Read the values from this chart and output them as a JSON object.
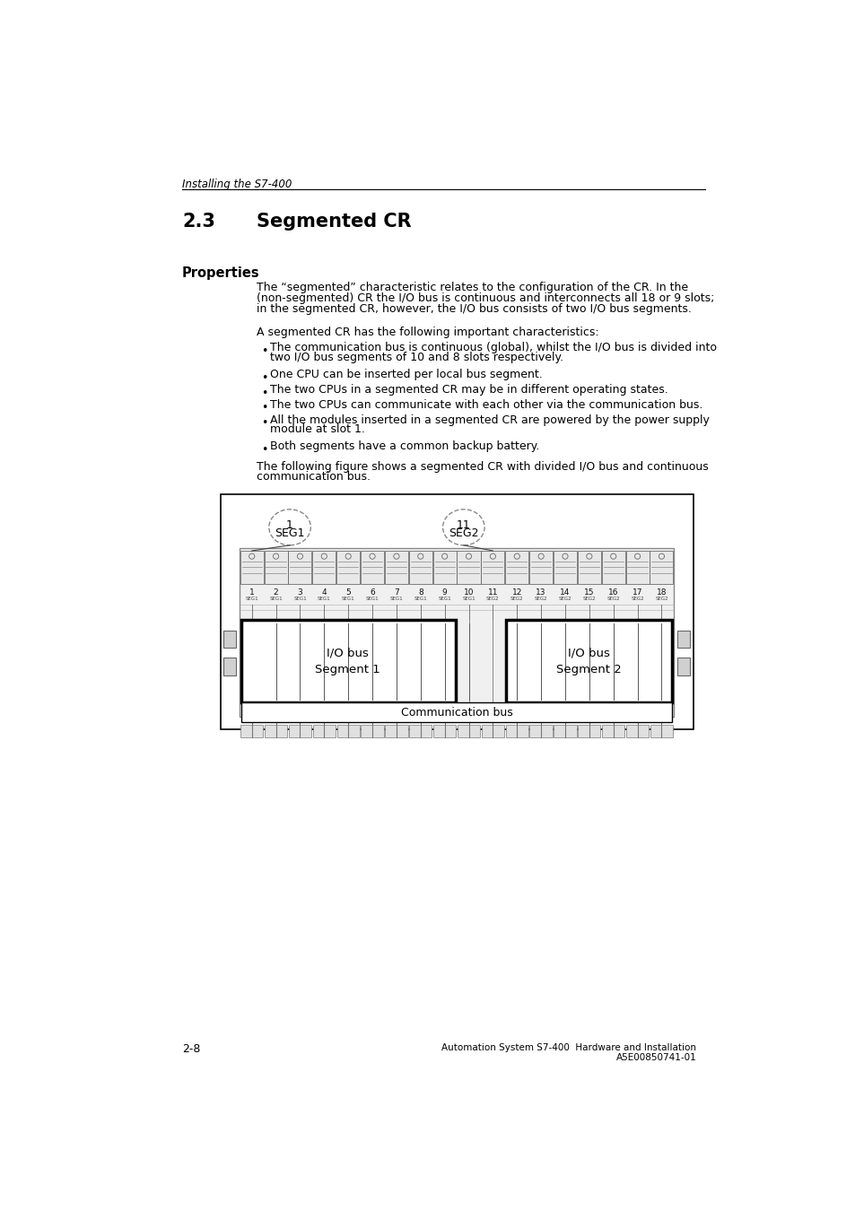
{
  "page_header": "Installing the S7-400",
  "section_number": "2.3",
  "section_title": "Segmented CR",
  "properties_heading": "Properties",
  "para1": "The “segmented” characteristic relates to the configuration of the CR. In the\n(non-segmented) CR the I/O bus is continuous and interconnects all 18 or 9 slots;\nin the segmented CR, however, the I/O bus consists of two I/O bus segments.",
  "para2": "A segmented CR has the following important characteristics:",
  "bullets": [
    "The communication bus is continuous (global), whilst the I/O bus is divided into\ntwo I/O bus segments of 10 and 8 slots respectively.",
    "One CPU can be inserted per local bus segment.",
    "The two CPUs in a segmented CR may be in different operating states.",
    "The two CPUs can communicate with each other via the communication bus.",
    "All the modules inserted in a segmented CR are powered by the power supply\nmodule at slot 1.",
    "Both segments have a common backup battery."
  ],
  "para3": "The following figure shows a segmented CR with divided I/O bus and continuous\ncommunication bus.",
  "footer_left": "2-8",
  "footer_right1": "Automation System S7-400  Hardware and Installation",
  "footer_right2": "A5E00850741-01",
  "fig_seg1_num": "1",
  "fig_seg1_label": "SEG1",
  "fig_seg2_num": "11",
  "fig_seg2_label": "SEG2",
  "fig_io_bus_seg1": "I/O bus\nSegment 1",
  "fig_io_bus_seg2": "I/O bus\nSegment 2",
  "fig_comm_bus": "Communication bus",
  "slot_numbers": [
    "1",
    "2",
    "3",
    "4",
    "5",
    "6",
    "7",
    "8",
    "9",
    "10",
    "11",
    "12",
    "13",
    "14",
    "15",
    "16",
    "17",
    "18"
  ],
  "bg_color": "#ffffff",
  "text_color": "#000000"
}
